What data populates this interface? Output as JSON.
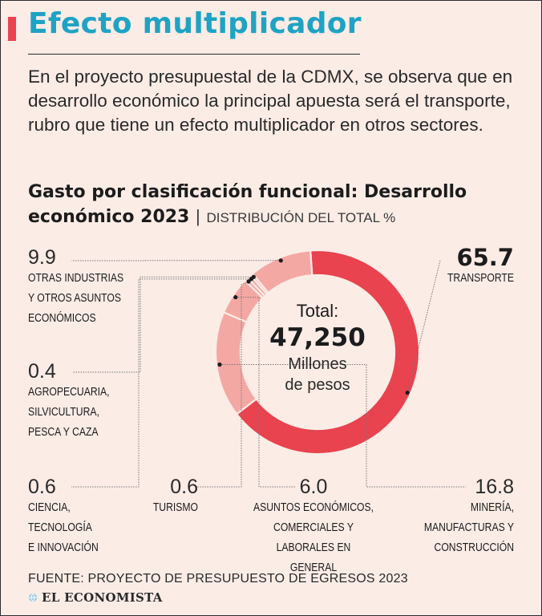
{
  "header": {
    "title": "Efecto multiplicador",
    "intro": "En el proyecto presupuestal de la CDMX, se observa que en desarrollo económico la principal apuesta será el transporte, rubro que tiene un efecto multiplicador en otros sectores."
  },
  "chart_data": {
    "type": "pie",
    "variant": "donut",
    "title": "Gasto por clasificación funcional: Desarrollo económico 2023",
    "separator": "|",
    "subtitle": "DISTRIBUCIÓN DEL TOTAL %",
    "center": {
      "label": "Total:",
      "value": "47,250",
      "unit_line1": "Millones",
      "unit_line2": "de pesos"
    },
    "slices": [
      {
        "key": "transporte",
        "value": 65.7,
        "value_label": "65.7",
        "label": "TRANSPORTE",
        "color": "#e8434f"
      },
      {
        "key": "mineria",
        "value": 16.8,
        "value_label": "16.8",
        "label": "MINERÍA,\nMANUFACTURAS Y\nCONSTRUCCIÓN",
        "color": "#f4a8a3"
      },
      {
        "key": "asuntos",
        "value": 6.0,
        "value_label": "6.0",
        "label": "ASUNTOS ECONÓMICOS,\nCOMERCIALES Y\nLABORALES EN GENERAL",
        "color": "#f4a8a3"
      },
      {
        "key": "turismo",
        "value": 0.6,
        "value_label": "0.6",
        "label": "TURISMO",
        "color": "#f4a8a3"
      },
      {
        "key": "ciencia",
        "value": 0.6,
        "value_label": "0.6",
        "label": "CIENCIA,\nTECNOLOGÍA\nE INNOVACIÓN",
        "color": "#f4a8a3"
      },
      {
        "key": "agro",
        "value": 0.4,
        "value_label": "0.4",
        "label": "AGROPECUARIA,\nSILVICULTURA,\nPESCA Y CAZA",
        "color": "#f4a8a3"
      },
      {
        "key": "otras",
        "value": 9.9,
        "value_label": "9.9",
        "label": "OTRAS INDUSTRIAS\nY OTROS ASUNTOS\nECONÓMICOS",
        "color": "#f4a8a3"
      }
    ]
  },
  "footer": {
    "source": "FUENTE: PROYECTO DE PRESUPUESTO DE EGRESOS 2023",
    "brand": "EL ECONOMISTA",
    "brand_icon": "globe-icon"
  },
  "colors": {
    "background": "#fbece6",
    "title": "#1fa3c4",
    "accent": "#e8434f",
    "slice_light": "#f4a8a3",
    "leader": "#777777"
  }
}
